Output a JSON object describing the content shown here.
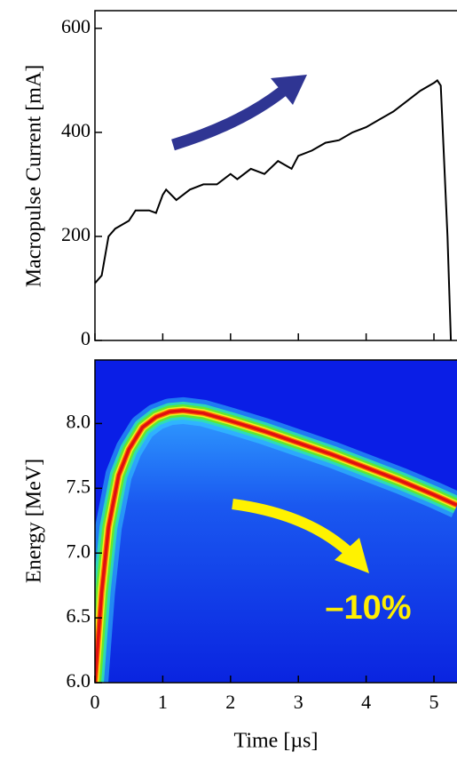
{
  "chart_data": [
    {
      "type": "line",
      "y_label": "Macropulse Current [mA]",
      "color": "#000000",
      "x": [
        0,
        0.1,
        0.2,
        0.3,
        0.5,
        0.6,
        0.8,
        0.9,
        1.0,
        1.05,
        1.2,
        1.4,
        1.6,
        1.8,
        2.0,
        2.1,
        2.3,
        2.5,
        2.7,
        2.9,
        3.0,
        3.2,
        3.4,
        3.6,
        3.8,
        4.0,
        4.2,
        4.4,
        4.6,
        4.8,
        5.0,
        5.05,
        5.1,
        5.2,
        5.25
      ],
      "values": [
        110,
        125,
        200,
        215,
        230,
        250,
        250,
        245,
        280,
        290,
        270,
        290,
        300,
        300,
        320,
        310,
        330,
        320,
        345,
        330,
        355,
        365,
        380,
        385,
        400,
        410,
        425,
        440,
        460,
        480,
        495,
        500,
        490,
        200,
        0
      ],
      "xlim": [
        0,
        5.34
      ],
      "ylim": [
        0,
        634
      ],
      "xticks": [
        0,
        1,
        2,
        3,
        4,
        5
      ],
      "yticks": [
        0,
        200,
        400,
        600
      ]
    },
    {
      "type": "heatmap",
      "x_label": "Time [µs]",
      "y_label": "Energy [MeV]",
      "annotation": "–10%",
      "x": [
        0,
        0.1,
        0.2,
        0.35,
        0.5,
        0.7,
        0.9,
        1.1,
        1.3,
        1.6,
        2.0,
        2.5,
        3.0,
        3.5,
        4.0,
        4.5,
        5.0,
        5.34
      ],
      "values": [
        6.0,
        6.7,
        7.2,
        7.6,
        7.8,
        7.97,
        8.05,
        8.09,
        8.1,
        8.08,
        8.02,
        7.94,
        7.85,
        7.76,
        7.66,
        7.56,
        7.45,
        7.37
      ],
      "xlim": [
        0,
        5.34
      ],
      "ylim": [
        6.0,
        8.49
      ],
      "xticks": [
        0,
        1,
        2,
        3,
        4,
        5
      ],
      "yticks": [
        {
          "value": 6,
          "label": "6.0"
        },
        {
          "value": 6.5,
          "label": "6.5"
        },
        {
          "value": 7,
          "label": "7.0"
        },
        {
          "value": 7.5,
          "label": "7.5"
        },
        {
          "value": 8,
          "label": "8.0"
        }
      ]
    }
  ]
}
